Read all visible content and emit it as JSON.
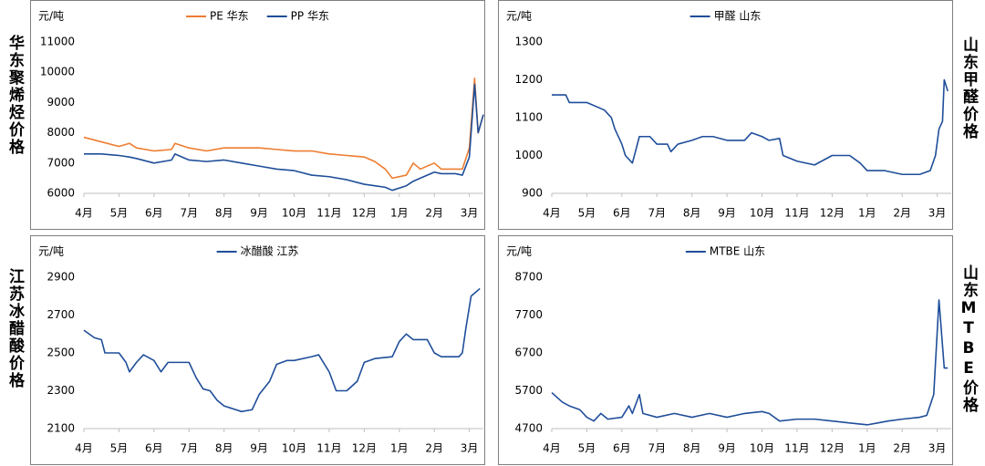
{
  "chart_data": [
    {
      "type": "line",
      "side_label": "华东聚烯烃价格",
      "y_label": "元/吨",
      "x": [
        0,
        0.5,
        1,
        1.3,
        1.5,
        2,
        2.5,
        2.6,
        3,
        3.5,
        4,
        4.5,
        5,
        5.5,
        6,
        6.5,
        7,
        7.5,
        8,
        8.3,
        8.6,
        8.8,
        9.2,
        9.4,
        9.6,
        10,
        10.2,
        10.6,
        10.8,
        11,
        11.15,
        11.25,
        11.4
      ],
      "series": [
        {
          "name": "PE 华东",
          "color": "#ed7d31",
          "values": [
            7850,
            7700,
            7550,
            7650,
            7500,
            7400,
            7450,
            7650,
            7500,
            7400,
            7500,
            7500,
            7500,
            7450,
            7400,
            7400,
            7300,
            7250,
            7200,
            7050,
            6800,
            6500,
            6600,
            7000,
            6800,
            7000,
            6800,
            6800,
            6800,
            7500,
            9800,
            8000,
            8600
          ]
        },
        {
          "name": "PP 华东",
          "color": "#1f4e99",
          "values": [
            7300,
            7300,
            7250,
            7200,
            7150,
            7000,
            7100,
            7300,
            7100,
            7050,
            7100,
            7000,
            6900,
            6800,
            6750,
            6600,
            6550,
            6450,
            6300,
            6250,
            6200,
            6100,
            6250,
            6400,
            6500,
            6700,
            6650,
            6650,
            6600,
            7200,
            9600,
            8000,
            8600
          ]
        }
      ],
      "xlim": [
        0,
        11.4
      ],
      "xticks": [
        {
          "value": 0,
          "label": "4月"
        },
        {
          "value": 1,
          "label": "5月"
        },
        {
          "value": 2,
          "label": "6月"
        },
        {
          "value": 3,
          "label": "7月"
        },
        {
          "value": 4,
          "label": "8月"
        },
        {
          "value": 5,
          "label": "9月"
        },
        {
          "value": 6,
          "label": "10月"
        },
        {
          "value": 7,
          "label": "11月"
        },
        {
          "value": 8,
          "label": "12月"
        },
        {
          "value": 9,
          "label": "1月"
        },
        {
          "value": 10,
          "label": "2月"
        },
        {
          "value": 11,
          "label": "3月"
        }
      ],
      "ylim": [
        6000,
        11000
      ],
      "yticks": [
        6000,
        7000,
        8000,
        9000,
        10000,
        11000
      ]
    },
    {
      "type": "line",
      "side_label": "山东甲醛价格",
      "y_label": "元/吨",
      "x": [
        0,
        0.4,
        0.5,
        1,
        1.5,
        1.7,
        1.8,
        2,
        2.1,
        2.3,
        2.5,
        2.8,
        3,
        3.3,
        3.4,
        3.6,
        4,
        4.3,
        4.6,
        5,
        5.5,
        5.7,
        6,
        6.2,
        6.5,
        6.6,
        7,
        7.5,
        8,
        8.5,
        8.8,
        9,
        9.5,
        10,
        10.5,
        10.8,
        10.95,
        11.05,
        11.15,
        11.2,
        11.3
      ],
      "series": [
        {
          "name": "甲醛 山东",
          "color": "#1f4e99",
          "values": [
            1160,
            1160,
            1140,
            1140,
            1120,
            1100,
            1070,
            1030,
            1000,
            980,
            1050,
            1050,
            1030,
            1030,
            1010,
            1030,
            1040,
            1050,
            1050,
            1040,
            1040,
            1060,
            1050,
            1040,
            1045,
            1000,
            985,
            975,
            1000,
            1000,
            980,
            960,
            960,
            950,
            950,
            960,
            1000,
            1070,
            1090,
            1200,
            1170
          ]
        }
      ],
      "xlim": [
        0,
        11.4
      ],
      "xticks": [
        {
          "value": 0,
          "label": "4月"
        },
        {
          "value": 1,
          "label": "5月"
        },
        {
          "value": 2,
          "label": "6月"
        },
        {
          "value": 3,
          "label": "7月"
        },
        {
          "value": 4,
          "label": "8月"
        },
        {
          "value": 5,
          "label": "9月"
        },
        {
          "value": 6,
          "label": "10月"
        },
        {
          "value": 7,
          "label": "11月"
        },
        {
          "value": 8,
          "label": "12月"
        },
        {
          "value": 9,
          "label": "1月"
        },
        {
          "value": 10,
          "label": "2月"
        },
        {
          "value": 11,
          "label": "3月"
        }
      ],
      "ylim": [
        900,
        1300
      ],
      "yticks": [
        900,
        1000,
        1100,
        1200,
        1300
      ]
    },
    {
      "type": "line",
      "side_label": "江苏冰醋酸价格",
      "y_label": "元/吨",
      "x": [
        0,
        0.3,
        0.5,
        0.6,
        1,
        1.2,
        1.3,
        1.5,
        1.7,
        2,
        2.2,
        2.4,
        3,
        3.2,
        3.4,
        3.6,
        3.8,
        4,
        4.5,
        4.8,
        5,
        5.3,
        5.5,
        5.8,
        6,
        6.5,
        6.7,
        7,
        7.2,
        7.5,
        7.8,
        8,
        8.3,
        8.8,
        9,
        9.2,
        9.4,
        9.8,
        10,
        10.2,
        10.7,
        10.8,
        10.9,
        11.05,
        11.3
      ],
      "series": [
        {
          "name": "冰醋酸 江苏",
          "color": "#1f4e99",
          "values": [
            2620,
            2580,
            2570,
            2500,
            2500,
            2450,
            2400,
            2450,
            2490,
            2460,
            2400,
            2450,
            2450,
            2370,
            2310,
            2300,
            2250,
            2220,
            2190,
            2200,
            2280,
            2350,
            2440,
            2460,
            2460,
            2480,
            2490,
            2400,
            2300,
            2300,
            2350,
            2450,
            2470,
            2480,
            2560,
            2600,
            2570,
            2570,
            2500,
            2480,
            2480,
            2500,
            2630,
            2800,
            2840
          ]
        }
      ],
      "xlim": [
        0,
        11.4
      ],
      "xticks": [
        {
          "value": 0,
          "label": "4月"
        },
        {
          "value": 1,
          "label": "5月"
        },
        {
          "value": 2,
          "label": "6月"
        },
        {
          "value": 3,
          "label": "7月"
        },
        {
          "value": 4,
          "label": "8月"
        },
        {
          "value": 5,
          "label": "9月"
        },
        {
          "value": 6,
          "label": "10月"
        },
        {
          "value": 7,
          "label": "11月"
        },
        {
          "value": 8,
          "label": "12月"
        },
        {
          "value": 9,
          "label": "1月"
        },
        {
          "value": 10,
          "label": "2月"
        },
        {
          "value": 11,
          "label": "3月"
        }
      ],
      "ylim": [
        2100,
        2900
      ],
      "yticks": [
        2100,
        2300,
        2500,
        2700,
        2900
      ]
    },
    {
      "type": "line",
      "side_label": "山东MTBE价格",
      "y_label": "元/吨",
      "x": [
        0,
        0.3,
        0.5,
        0.8,
        1,
        1.2,
        1.4,
        1.6,
        2,
        2.2,
        2.3,
        2.5,
        2.6,
        3,
        3.5,
        4,
        4.5,
        5,
        5.5,
        6,
        6.2,
        6.5,
        7,
        7.5,
        8,
        8.5,
        9,
        9.3,
        9.6,
        10,
        10.5,
        10.7,
        10.9,
        11.05,
        11.2,
        11.3
      ],
      "series": [
        {
          "name": "MTBE 山东",
          "color": "#1f4e99",
          "values": [
            5650,
            5400,
            5300,
            5200,
            5000,
            4900,
            5100,
            4950,
            5000,
            5300,
            5100,
            5600,
            5100,
            5000,
            5100,
            5000,
            5100,
            5000,
            5100,
            5150,
            5100,
            4900,
            4950,
            4950,
            4900,
            4850,
            4800,
            4850,
            4900,
            4950,
            5000,
            5050,
            5600,
            8100,
            6300,
            6300
          ]
        }
      ],
      "xlim": [
        0,
        11.4
      ],
      "xticks": [
        {
          "value": 0,
          "label": "4月"
        },
        {
          "value": 1,
          "label": "5月"
        },
        {
          "value": 2,
          "label": "6月"
        },
        {
          "value": 3,
          "label": "7月"
        },
        {
          "value": 4,
          "label": "8月"
        },
        {
          "value": 5,
          "label": "9月"
        },
        {
          "value": 6,
          "label": "10月"
        },
        {
          "value": 7,
          "label": "11月"
        },
        {
          "value": 8,
          "label": "12月"
        },
        {
          "value": 9,
          "label": "1月"
        },
        {
          "value": 10,
          "label": "2月"
        },
        {
          "value": 11,
          "label": "3月"
        }
      ],
      "ylim": [
        4700,
        8700
      ],
      "yticks": [
        4700,
        5700,
        6700,
        7700,
        8700
      ]
    }
  ]
}
